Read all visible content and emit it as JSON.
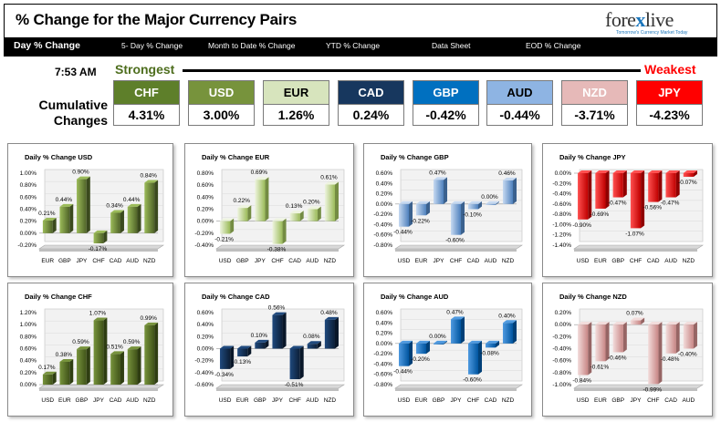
{
  "header": {
    "title": "% Change for the Major Currency Pairs",
    "logo_left": "fore",
    "logo_x": "x",
    "logo_right": "live",
    "logo_tagline": "Tomorrow's Currency Market Today"
  },
  "nav": {
    "items": [
      "Day % Change",
      "5- Day % Change",
      "Month to Date % Change",
      "YTD % Change",
      "Data Sheet",
      "EOD % Change"
    ]
  },
  "ranking": {
    "time": "7:53 AM",
    "strongest_label": "Strongest",
    "weakest_label": "Weakest",
    "cumulative_label_1": "Cumulative",
    "cumulative_label_2": "Changes",
    "currencies": [
      {
        "name": "CHF",
        "value": "4.31%",
        "color": "#5e7f2a",
        "text_color": "#ffffff"
      },
      {
        "name": "USD",
        "value": "3.00%",
        "color": "#77933c",
        "text_color": "#ffffff"
      },
      {
        "name": "EUR",
        "value": "1.26%",
        "color": "#d7e4bd",
        "text_color": "#000000"
      },
      {
        "name": "CAD",
        "value": "0.24%",
        "color": "#17375e",
        "text_color": "#ffffff"
      },
      {
        "name": "GBP",
        "value": "-0.42%",
        "color": "#0070c0",
        "text_color": "#ffffff"
      },
      {
        "name": "AUD",
        "value": "-0.44%",
        "color": "#8eb4e3",
        "text_color": "#000000"
      },
      {
        "name": "NZD",
        "value": "-3.71%",
        "color": "#e6b9b8",
        "text_color": "#ffffff"
      },
      {
        "name": "JPY",
        "value": "-4.23%",
        "color": "#ff0000",
        "text_color": "#ffffff"
      }
    ]
  },
  "chart_data": [
    {
      "type": "bar",
      "title": "Daily % Change USD",
      "categories": [
        "EUR",
        "GBP",
        "JPY",
        "CHF",
        "CAD",
        "AUD",
        "NZD"
      ],
      "values": [
        0.21,
        0.44,
        0.9,
        -0.17,
        0.34,
        0.44,
        0.84
      ],
      "labels": [
        "0.21%",
        "0.44%",
        "0.90%",
        "-0.17%",
        "0.34%",
        "0.44%",
        "0.84%"
      ],
      "ylim": [
        -0.2,
        1.0
      ],
      "yticks": [
        "1.00%",
        "0.80%",
        "0.60%",
        "0.40%",
        "0.20%",
        "0.00%",
        "-0.20%"
      ],
      "colors": [
        "#9bbb59",
        "#4f6228"
      ]
    },
    {
      "type": "bar",
      "title": "Daily % Change EUR",
      "categories": [
        "USD",
        "GBP",
        "JPY",
        "CHF",
        "CAD",
        "AUD",
        "NZD"
      ],
      "values": [
        -0.21,
        0.22,
        0.69,
        -0.38,
        0.13,
        0.2,
        0.61
      ],
      "labels": [
        "-0.21%",
        "0.22%",
        "0.69%",
        "-0.38%",
        "0.13%",
        "0.20%",
        "0.61%"
      ],
      "ylim": [
        -0.4,
        0.8
      ],
      "yticks": [
        "0.80%",
        "0.60%",
        "0.40%",
        "0.20%",
        "0.00%",
        "-0.20%",
        "-0.40%"
      ],
      "colors": [
        "#eef4df",
        "#9bbb59"
      ]
    },
    {
      "type": "bar",
      "title": "Daily % Change GBP",
      "categories": [
        "USD",
        "EUR",
        "JPY",
        "CHF",
        "CAD",
        "AUD",
        "NZD"
      ],
      "values": [
        -0.44,
        -0.22,
        0.47,
        -0.6,
        -0.1,
        0.0,
        0.46
      ],
      "labels": [
        "-0.44%",
        "-0.22%",
        "0.47%",
        "-0.60%",
        "-0.10%",
        "0.00%",
        "0.46%"
      ],
      "ylim": [
        -0.8,
        0.6
      ],
      "yticks": [
        "0.60%",
        "0.40%",
        "0.20%",
        "0.00%",
        "-0.20%",
        "-0.40%",
        "-0.60%",
        "-0.80%"
      ],
      "colors": [
        "#c6d9f1",
        "#4f81bd"
      ]
    },
    {
      "type": "bar",
      "title": "Daily % Change JPY",
      "categories": [
        "USD",
        "EUR",
        "GBP",
        "CHF",
        "CAD",
        "AUD",
        "NZD"
      ],
      "values": [
        -0.9,
        -0.69,
        -0.47,
        -1.07,
        -0.56,
        -0.47,
        -0.07
      ],
      "labels": [
        "-0.90%",
        "-0.69%",
        "-0.47%",
        "-1.07%",
        "-0.56%",
        "-0.47%",
        "-0.07%"
      ],
      "ylim": [
        -1.4,
        0.0
      ],
      "yticks": [
        "0.00%",
        "-0.20%",
        "-0.40%",
        "-0.60%",
        "-0.80%",
        "-1.00%",
        "-1.20%",
        "-1.40%"
      ],
      "colors": [
        "#ff5050",
        "#c00000"
      ]
    },
    {
      "type": "bar",
      "title": "Daily % Change CHF",
      "categories": [
        "USD",
        "EUR",
        "GBP",
        "JPY",
        "CAD",
        "AUD",
        "NZD"
      ],
      "values": [
        0.17,
        0.38,
        0.59,
        1.07,
        0.51,
        0.59,
        0.99
      ],
      "labels": [
        "0.17%",
        "0.38%",
        "0.59%",
        "1.07%",
        "0.51%",
        "0.59%",
        "0.99%"
      ],
      "ylim": [
        0.0,
        1.2
      ],
      "yticks": [
        "1.20%",
        "1.00%",
        "0.80%",
        "0.60%",
        "0.40%",
        "0.20%",
        "0.00%"
      ],
      "colors": [
        "#77933c",
        "#3f5218"
      ]
    },
    {
      "type": "bar",
      "title": "Daily % Change CAD",
      "categories": [
        "USD",
        "EUR",
        "GBP",
        "JPY",
        "CHF",
        "AUD",
        "NZD"
      ],
      "values": [
        -0.34,
        -0.13,
        0.1,
        0.56,
        -0.51,
        0.08,
        0.48
      ],
      "labels": [
        "-0.34%",
        "-0.13%",
        "0.10%",
        "0.56%",
        "-0.51%",
        "0.08%",
        "0.48%"
      ],
      "ylim": [
        -0.6,
        0.6
      ],
      "yticks": [
        "0.60%",
        "0.40%",
        "0.20%",
        "0.00%",
        "-0.20%",
        "-0.40%",
        "-0.60%"
      ],
      "colors": [
        "#1f497d",
        "#0c1e36"
      ]
    },
    {
      "type": "bar",
      "title": "Daily % Change AUD",
      "categories": [
        "USD",
        "EUR",
        "GBP",
        "JPY",
        "CHF",
        "CAD",
        "NZD"
      ],
      "values": [
        -0.44,
        -0.2,
        0.0,
        0.47,
        -0.6,
        -0.08,
        0.4
      ],
      "labels": [
        "-0.44%",
        "-0.20%",
        "0.00%",
        "0.47%",
        "-0.60%",
        "-0.08%",
        "0.40%"
      ],
      "ylim": [
        -0.8,
        0.6
      ],
      "yticks": [
        "0.60%",
        "0.40%",
        "0.20%",
        "0.00%",
        "-0.20%",
        "-0.40%",
        "-0.60%",
        "-0.80%"
      ],
      "colors": [
        "#4f9ae0",
        "#0055a0"
      ]
    },
    {
      "type": "bar",
      "title": "Daily % Change NZD",
      "categories": [
        "USD",
        "EUR",
        "GBP",
        "JPY",
        "CHF",
        "CAD",
        "AUD"
      ],
      "values": [
        -0.84,
        -0.61,
        -0.46,
        0.07,
        -0.99,
        -0.48,
        -0.4
      ],
      "labels": [
        "-0.84%",
        "-0.61%",
        "-0.46%",
        "0.07%",
        "-0.99%",
        "-0.48%",
        "-0.40%"
      ],
      "ylim": [
        -1.0,
        0.2
      ],
      "yticks": [
        "0.20%",
        "0.00%",
        "-0.20%",
        "-0.40%",
        "-0.60%",
        "-0.80%",
        "-1.00%"
      ],
      "colors": [
        "#f2dcdb",
        "#c88685"
      ]
    }
  ]
}
